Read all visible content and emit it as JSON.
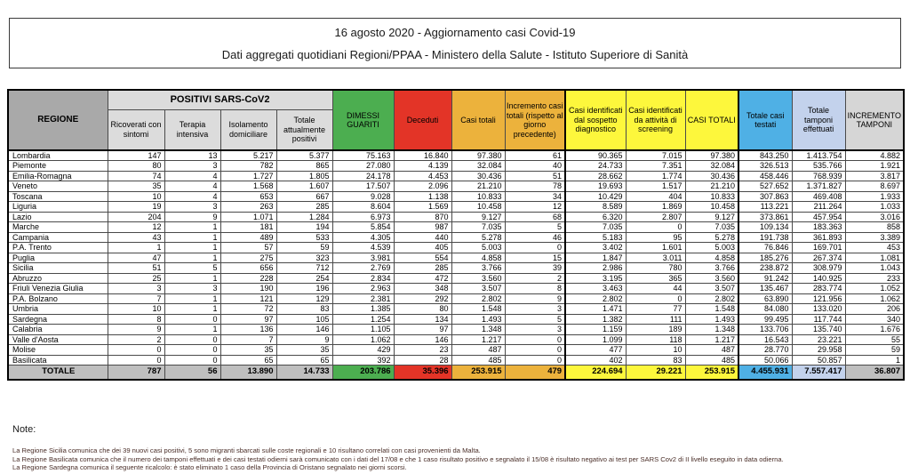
{
  "title": {
    "line1": "16 agosto 2020 - Aggiornamento casi Covid-19",
    "line2": "Dati aggregati quotidiani Regioni/PPAA - Ministero della Salute - Istituto Superiore di Sanità"
  },
  "table": {
    "group_header": "POSITIVI SARS-CoV2",
    "columns": {
      "regione": "REGIONE",
      "ricoverati": "Ricoverati con sintomi",
      "terapia": "Terapia intensiva",
      "isolamento": "Isolamento domiciliare",
      "tot_positivi": "Totale attualmente positivi",
      "dimessi": "DIMESSI GUARITI",
      "deceduti": "Deceduti",
      "casi_totali": "Casi totali",
      "incremento_casi": "Incremento casi totali (rispetto al giorno precedente)",
      "sospetto": "Casi identificati dal sospetto diagnostico",
      "screening": "Casi identificati da attività di screening",
      "casi_totali_caps": "CASI TOTALI",
      "casi_testati": "Totale casi testati",
      "tamponi": "Totale tamponi effettuati",
      "incremento_tamponi": "INCREMENTO TAMPONI"
    },
    "rows": [
      {
        "regione": "Lombardia",
        "values": [
          "147",
          "13",
          "5.217",
          "5.377",
          "75.163",
          "16.840",
          "97.380",
          "61",
          "90.365",
          "7.015",
          "97.380",
          "843.250",
          "1.413.754",
          "4.882"
        ]
      },
      {
        "regione": "Piemonte",
        "values": [
          "80",
          "3",
          "782",
          "865",
          "27.080",
          "4.139",
          "32.084",
          "40",
          "24.733",
          "7.351",
          "32.084",
          "326.513",
          "535.766",
          "1.921"
        ]
      },
      {
        "regione": "Emilia-Romagna",
        "values": [
          "74",
          "4",
          "1.727",
          "1.805",
          "24.178",
          "4.453",
          "30.436",
          "51",
          "28.662",
          "1.774",
          "30.436",
          "458.446",
          "768.939",
          "3.817"
        ]
      },
      {
        "regione": "Veneto",
        "values": [
          "35",
          "4",
          "1.568",
          "1.607",
          "17.507",
          "2.096",
          "21.210",
          "78",
          "19.693",
          "1.517",
          "21.210",
          "527.652",
          "1.371.827",
          "8.697"
        ]
      },
      {
        "regione": "Toscana",
        "values": [
          "10",
          "4",
          "653",
          "667",
          "9.028",
          "1.138",
          "10.833",
          "34",
          "10.429",
          "404",
          "10.833",
          "307.863",
          "469.408",
          "1.933"
        ]
      },
      {
        "regione": "Liguria",
        "values": [
          "19",
          "3",
          "263",
          "285",
          "8.604",
          "1.569",
          "10.458",
          "12",
          "8.589",
          "1.869",
          "10.458",
          "113.221",
          "211.264",
          "1.033"
        ]
      },
      {
        "regione": "Lazio",
        "values": [
          "204",
          "9",
          "1.071",
          "1.284",
          "6.973",
          "870",
          "9.127",
          "68",
          "6.320",
          "2.807",
          "9.127",
          "373.861",
          "457.954",
          "3.016"
        ]
      },
      {
        "regione": "Marche",
        "values": [
          "12",
          "1",
          "181",
          "194",
          "5.854",
          "987",
          "7.035",
          "5",
          "7.035",
          "0",
          "7.035",
          "109.134",
          "183.363",
          "858"
        ]
      },
      {
        "regione": "Campania",
        "values": [
          "43",
          "1",
          "489",
          "533",
          "4.305",
          "440",
          "5.278",
          "46",
          "5.183",
          "95",
          "5.278",
          "191.738",
          "361.893",
          "3.389"
        ]
      },
      {
        "regione": "P.A. Trento",
        "values": [
          "1",
          "1",
          "57",
          "59",
          "4.539",
          "405",
          "5.003",
          "0",
          "3.402",
          "1.601",
          "5.003",
          "76.846",
          "169.701",
          "453"
        ]
      },
      {
        "regione": "Puglia",
        "values": [
          "47",
          "1",
          "275",
          "323",
          "3.981",
          "554",
          "4.858",
          "15",
          "1.847",
          "3.011",
          "4.858",
          "185.276",
          "267.374",
          "1.081"
        ]
      },
      {
        "regione": "Sicilia",
        "values": [
          "51",
          "5",
          "656",
          "712",
          "2.769",
          "285",
          "3.766",
          "39",
          "2.986",
          "780",
          "3.766",
          "238.872",
          "308.979",
          "1.043"
        ]
      },
      {
        "regione": "Abruzzo",
        "values": [
          "25",
          "1",
          "228",
          "254",
          "2.834",
          "472",
          "3.560",
          "2",
          "3.195",
          "365",
          "3.560",
          "91.242",
          "140.925",
          "233"
        ]
      },
      {
        "regione": "Friuli Venezia Giulia",
        "values": [
          "3",
          "3",
          "190",
          "196",
          "2.963",
          "348",
          "3.507",
          "8",
          "3.463",
          "44",
          "3.507",
          "135.467",
          "283.774",
          "1.052"
        ]
      },
      {
        "regione": "P.A. Bolzano",
        "values": [
          "7",
          "1",
          "121",
          "129",
          "2.381",
          "292",
          "2.802",
          "9",
          "2.802",
          "0",
          "2.802",
          "63.890",
          "121.956",
          "1.062"
        ]
      },
      {
        "regione": "Umbria",
        "values": [
          "10",
          "1",
          "72",
          "83",
          "1.385",
          "80",
          "1.548",
          "3",
          "1.471",
          "77",
          "1.548",
          "84.080",
          "133.020",
          "206"
        ]
      },
      {
        "regione": "Sardegna",
        "values": [
          "8",
          "0",
          "97",
          "105",
          "1.254",
          "134",
          "1.493",
          "5",
          "1.382",
          "111",
          "1.493",
          "99.495",
          "117.744",
          "340"
        ]
      },
      {
        "regione": "Calabria",
        "values": [
          "9",
          "1",
          "136",
          "146",
          "1.105",
          "97",
          "1.348",
          "3",
          "1.159",
          "189",
          "1.348",
          "133.706",
          "135.740",
          "1.676"
        ]
      },
      {
        "regione": "Valle d'Aosta",
        "values": [
          "2",
          "0",
          "7",
          "9",
          "1.062",
          "146",
          "1.217",
          "0",
          "1.099",
          "118",
          "1.217",
          "16.543",
          "23.221",
          "55"
        ]
      },
      {
        "regione": "Molise",
        "values": [
          "0",
          "0",
          "35",
          "35",
          "429",
          "23",
          "487",
          "0",
          "477",
          "10",
          "487",
          "28.770",
          "29.958",
          "59"
        ]
      },
      {
        "regione": "Basilicata",
        "values": [
          "0",
          "0",
          "65",
          "65",
          "392",
          "28",
          "485",
          "0",
          "402",
          "83",
          "485",
          "50.066",
          "50.857",
          "1"
        ]
      }
    ],
    "total_row": {
      "regione": "TOTALE",
      "values": [
        "787",
        "56",
        "13.890",
        "14.733",
        "203.786",
        "35.396",
        "253.915",
        "479",
        "224.694",
        "29.221",
        "253.915",
        "4.455.931",
        "7.557.417",
        "36.807"
      ]
    }
  },
  "notes": {
    "heading": "Note:",
    "lines": [
      "La Regione Sicilia comunica che dei 39 nuovi casi positivi, 5 sono migranti sbarcati sulle coste regionali e 10 risultano correlati con casi provenienti da Malta.",
      "La Regione Basilicata comunica che il numero dei tamponi effettuati e dei casi testati odierni sarà comunicato con i dati del 17/08 e che 1 caso risultato positivo e segnalato il 15/08 è risultato negativo ai test per SARS Cov2 di II livello eseguito in data odierna.",
      "La Regione Sardegna comunica il seguente ricalcolo: è stato eliminato 1 caso della Provincia di Oristano segnalato nei giorni scorsi."
    ]
  },
  "colors": {
    "green": "#4cae50",
    "red": "#e33427",
    "orange": "#ecb23c",
    "yellow": "#fdf73c",
    "blue": "#4fb0e5",
    "lavender": "#c3d2ec",
    "regione_header_gray": "#a9a9a9",
    "subheader_gray": "#dcdcdc",
    "total_row_gray": "#bfbfbf",
    "incremento_tamponi_gray": "#d6d6d6"
  }
}
